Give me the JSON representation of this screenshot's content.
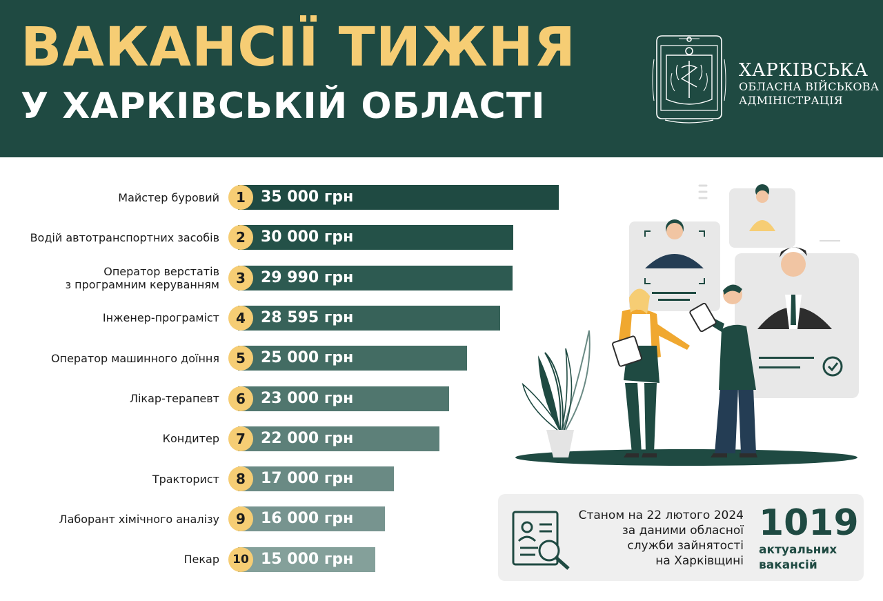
{
  "header": {
    "title_line1": "ВАКАНСІЇ ТИЖНЯ",
    "title_line2": "У ХАРКІВСЬКІЙ ОБЛАСТІ",
    "org_line1": "ХАРКІВСЬКА",
    "org_line2": "ОБЛАСНА ВІЙСЬКОВА",
    "org_line3": "АДМІНІСТРАЦІЯ",
    "colors": {
      "background": "#1f4a42",
      "title_accent": "#f6cd74",
      "text": "#ffffff"
    }
  },
  "chart_data": {
    "type": "bar",
    "orientation": "horizontal",
    "categories": [
      "Майстер буровий",
      "Водій автотранспортних засобів",
      "Оператор верстатів\nз програмним керуванням",
      "Інженер-програміст",
      "Оператор машинного доїння",
      "Лікар-терапевт",
      "Кондитер",
      "Тракторист",
      "Лаборант хімічного аналізу",
      "Пекар"
    ],
    "ranks": [
      "1",
      "2",
      "3",
      "4",
      "5",
      "6",
      "7",
      "8",
      "9",
      "10"
    ],
    "values": [
      35000,
      30000,
      29990,
      28595,
      25000,
      23000,
      22000,
      17000,
      16000,
      15000
    ],
    "value_labels": [
      "35 000 грн",
      "30 000 грн",
      "29 990 грн",
      "28 595 грн",
      "25 000 грн",
      "23 000 грн",
      "22 000 грн",
      "17 000 грн",
      "16 000 грн",
      "15 000 грн"
    ],
    "bar_colors": [
      "#1f4a42",
      "#245148",
      "#2d5a51",
      "#376259",
      "#436c63",
      "#50766e",
      "#5d8079",
      "#6a8a84",
      "#77948f",
      "#84a09a"
    ],
    "rank_badge_color": "#f6cd74",
    "title": "",
    "xlabel": "",
    "ylabel": ""
  },
  "info_box": {
    "text_lines": [
      "Станом на 22 лютого 2024",
      "за даними обласної",
      "служби зайнятості",
      "на Харківщині"
    ],
    "count": "1019",
    "count_label_line1": "актуальних",
    "count_label_line2": "вакансій",
    "icon": "document-search-icon"
  },
  "illustration": {
    "icons": [
      "person-portrait-icon",
      "checkmark-circle-icon",
      "plant-icon"
    ]
  }
}
